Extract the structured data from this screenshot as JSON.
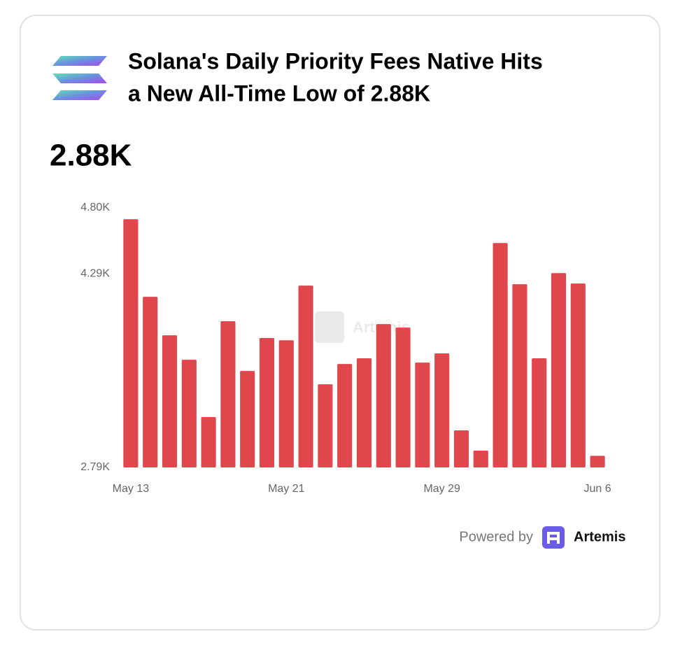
{
  "chart_data": {
    "type": "bar",
    "title_lines": [
      "Solana's Daily Priority Fees Native Hits",
      "a New All-Time Low of 2.88K"
    ],
    "headline_value": "2.88K",
    "watermark": "Artemis",
    "footer": {
      "prefix": "Powered by",
      "brand": "Artemis"
    },
    "categories": [
      "May 13",
      null,
      null,
      null,
      null,
      null,
      null,
      null,
      "May 21",
      null,
      null,
      null,
      null,
      null,
      null,
      null,
      "May 29",
      null,
      null,
      null,
      null,
      null,
      null,
      null,
      "Jun 6"
    ],
    "values": [
      4712,
      4111,
      3813,
      3624,
      3180,
      3922,
      3537,
      3792,
      3775,
      4198,
      3434,
      3591,
      3635,
      3900,
      3873,
      3602,
      3673,
      3077,
      2920,
      4528,
      4209,
      3635,
      4295,
      4214,
      2880
    ],
    "color": "#e0474c",
    "ylim": [
      2790,
      4800
    ],
    "yticks": [
      {
        "value": 2790,
        "label": "2.79K"
      },
      {
        "value": 4290,
        "label": "4.29K"
      },
      {
        "value": 4800,
        "label": "4.80K"
      }
    ],
    "grid": false
  }
}
